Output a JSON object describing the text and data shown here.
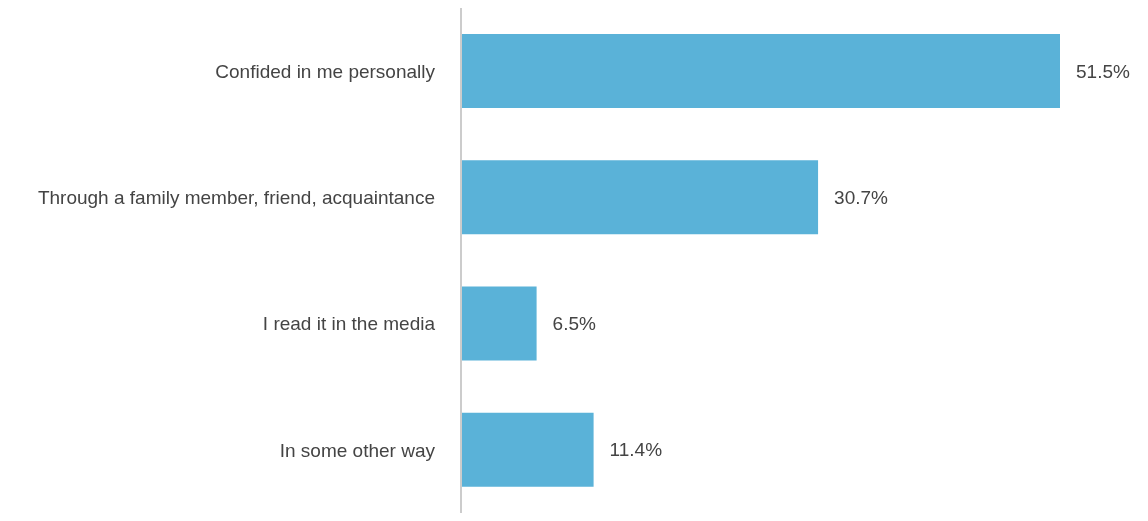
{
  "chart_data": {
    "type": "bar",
    "orientation": "horizontal",
    "categories": [
      "Confided in me personally",
      "Through a family member, friend, acquaintance",
      "I read it in the media",
      "In some other way"
    ],
    "values": [
      51.5,
      30.7,
      6.5,
      11.4
    ],
    "value_labels": [
      "51.5%",
      "30.7%",
      "6.5%",
      "11.4%"
    ],
    "color": "#5ab2d8"
  }
}
